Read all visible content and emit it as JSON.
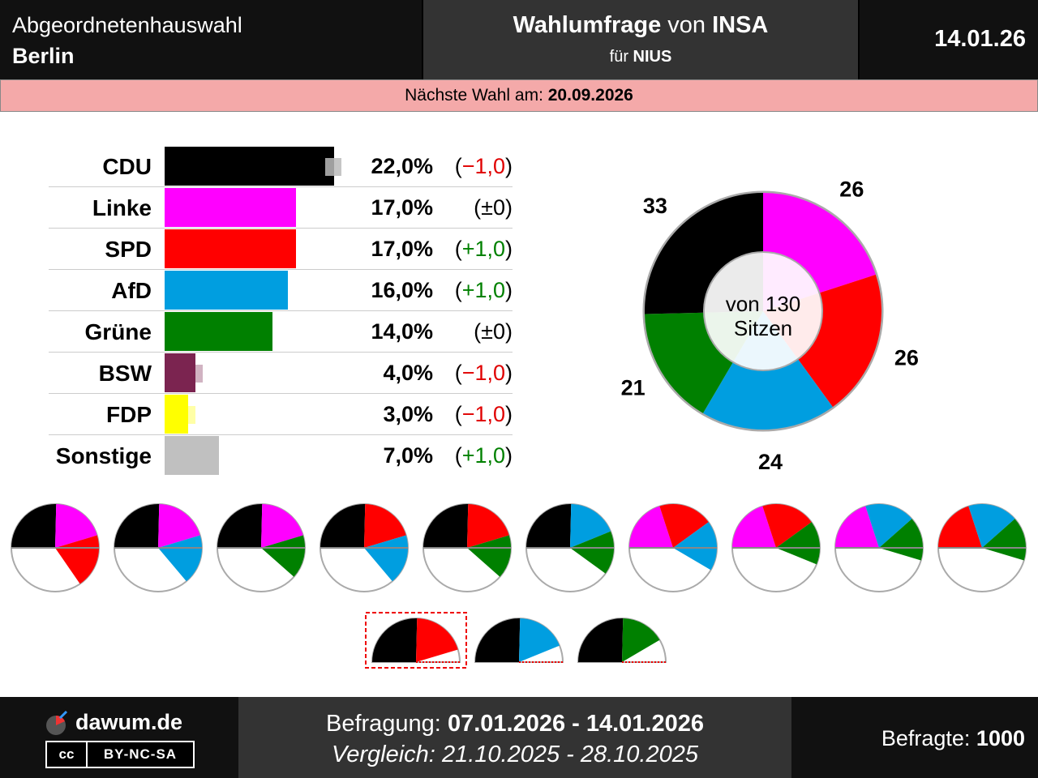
{
  "header": {
    "election_label": "Abgeordnetenhauswahl",
    "region": "Berlin",
    "poll_title_prefix": "Wahlumfrage",
    "poll_title_von": "von",
    "institute": "INSA",
    "client_prefix": "für",
    "client": "NIUS",
    "date": "14.01.26"
  },
  "next_election": {
    "label": "Nächste Wahl am:",
    "date": "20.09.2026"
  },
  "chart_data": [
    {
      "type": "bar",
      "categories": [
        "CDU",
        "Linke",
        "SPD",
        "AfD",
        "Grüne",
        "BSW",
        "FDP",
        "Sonstige"
      ],
      "values": [
        22.0,
        17.0,
        17.0,
        16.0,
        14.0,
        4.0,
        3.0,
        7.0
      ],
      "previous_values": [
        23.0,
        17.0,
        16.0,
        15.0,
        14.0,
        5.0,
        4.0,
        6.0
      ],
      "value_labels": [
        "22,0%",
        "17,0%",
        "17,0%",
        "16,0%",
        "14,0%",
        "4,0%",
        "3,0%",
        "7,0%"
      ],
      "change_labels": [
        "(−1,0)",
        "(±0)",
        "(+1,0)",
        "(+1,0)",
        "(±0)",
        "(−1,0)",
        "(−1,0)",
        "(+1,0)"
      ],
      "colors": [
        "#000000",
        "#ff00ff",
        "#ff0000",
        "#009ee0",
        "#008000",
        "#7b2450",
        "#ffff00",
        "#c0c0c0"
      ]
    },
    {
      "type": "pie",
      "categories": [
        "CDU",
        "Linke",
        "SPD",
        "AfD",
        "Grüne"
      ],
      "values": [
        33,
        26,
        26,
        24,
        21
      ],
      "value_labels": [
        "33",
        "26",
        "26",
        "24",
        "21"
      ],
      "colors": [
        "#000000",
        "#ff00ff",
        "#ff0000",
        "#009ee0",
        "#008000"
      ],
      "center_label_line1": "von 130",
      "center_label_line2": "Sitzen"
    },
    {
      "type": "pie",
      "description_of_small_charts": "coalition seat pies",
      "coalitions_row1": [
        [
          "CDU",
          "Linke",
          "SPD"
        ],
        [
          "CDU",
          "Linke",
          "AfD"
        ],
        [
          "CDU",
          "Linke",
          "Grüne"
        ],
        [
          "CDU",
          "SPD",
          "AfD"
        ],
        [
          "CDU",
          "SPD",
          "Grüne"
        ],
        [
          "CDU",
          "AfD",
          "Grüne"
        ],
        [
          "Linke",
          "SPD",
          "AfD"
        ],
        [
          "Linke",
          "SPD",
          "Grüne"
        ],
        [
          "Linke",
          "AfD",
          "Grüne"
        ],
        [
          "SPD",
          "AfD",
          "Grüne"
        ]
      ],
      "coalitions_row2": [
        [
          "CDU",
          "SPD"
        ],
        [
          "CDU",
          "AfD"
        ],
        [
          "CDU",
          "Grüne"
        ]
      ],
      "total_seats": 130
    }
  ],
  "footer": {
    "brand": "dawum.de",
    "license_cc": "cc",
    "license": "BY-NC-SA",
    "survey_label": "Befragung:",
    "survey_range": "07.01.2026 - 14.01.2026",
    "compare_label": "Vergleich:",
    "compare_range": "21.10.2025 - 28.10.2025",
    "respondents_label": "Befragte:",
    "respondents": "1000"
  }
}
